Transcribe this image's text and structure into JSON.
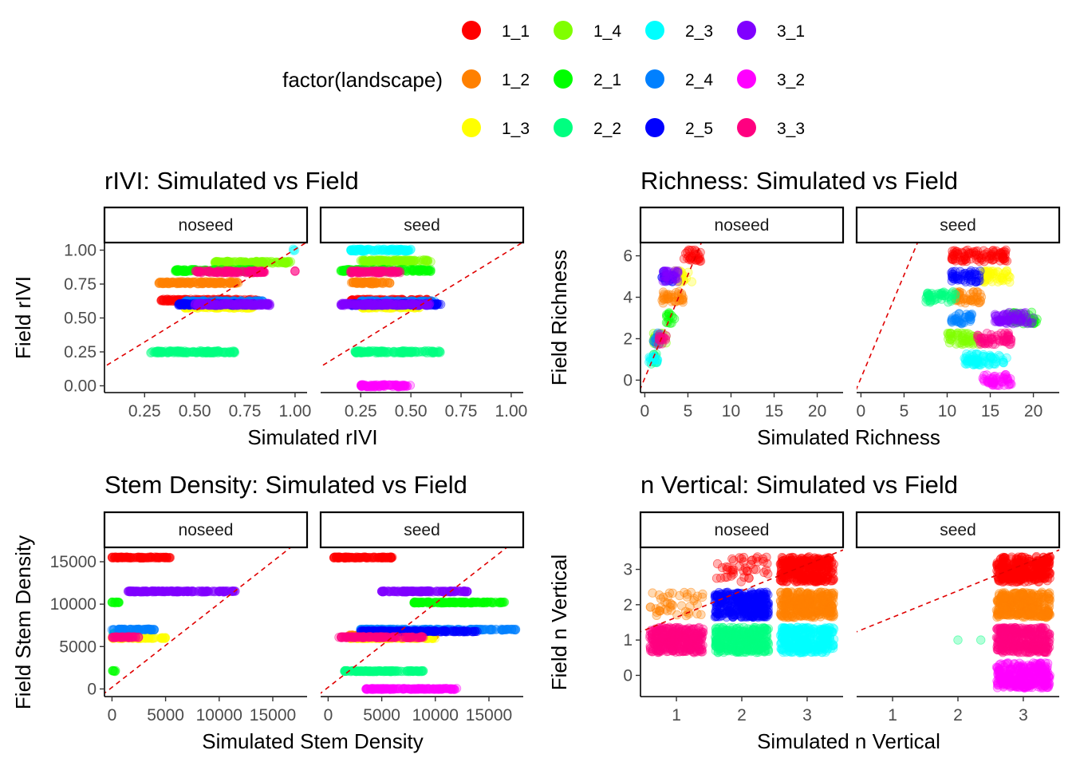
{
  "legend": {
    "title": "factor(landscape)",
    "items": [
      {
        "label": "1_1",
        "color": "#FF0000"
      },
      {
        "label": "1_2",
        "color": "#FF8000"
      },
      {
        "label": "1_3",
        "color": "#FFFF00"
      },
      {
        "label": "1_4",
        "color": "#80FF00"
      },
      {
        "label": "2_1",
        "color": "#00FF00"
      },
      {
        "label": "2_2",
        "color": "#00FF80"
      },
      {
        "label": "2_3",
        "color": "#00FFFF"
      },
      {
        "label": "2_4",
        "color": "#0080FF"
      },
      {
        "label": "2_5",
        "color": "#0000FF"
      },
      {
        "label": "3_1",
        "color": "#8000FF"
      },
      {
        "label": "3_2",
        "color": "#FF00FF"
      },
      {
        "label": "3_3",
        "color": "#FF0080"
      }
    ]
  },
  "chart_data": [
    {
      "type": "scatter",
      "title": "rIVI: Simulated vs Field",
      "xlabel": "Simulated rIVI",
      "ylabel": "Field rIVI",
      "facets": [
        "noseed",
        "seed"
      ],
      "xlim": [
        0.05,
        1.06
      ],
      "ylim": [
        -0.05,
        1.05
      ],
      "xticks": [
        0.25,
        0.5,
        0.75,
        1.0
      ],
      "xtick_labels": [
        "0.25",
        "0.50",
        "0.75",
        "1.00"
      ],
      "yticks": [
        0,
        0.25,
        0.5,
        0.75,
        1.0
      ],
      "ytick_labels": [
        "0.00",
        "0.25",
        "0.50",
        "0.75",
        "1.00"
      ],
      "reference_line": "y = x (red dashed)",
      "clusters": {
        "noseed": [
          {
            "g": "1_1",
            "y": 0.63,
            "x": [
              0.33,
              0.82
            ]
          },
          {
            "g": "1_2",
            "y": 0.76,
            "x": [
              0.32,
              0.72
            ]
          },
          {
            "g": "1_3",
            "y": 0.58,
            "x": [
              0.45,
              0.8
            ]
          },
          {
            "g": "1_4",
            "y": 0.91,
            "x": [
              0.6,
              0.98
            ]
          },
          {
            "g": "2_1",
            "y": 0.85,
            "x": [
              0.4,
              0.8
            ]
          },
          {
            "g": "2_2",
            "y": 0.25,
            "x": [
              0.28,
              0.7
            ]
          },
          {
            "g": "2_3",
            "y": 1.0,
            "x": [
              0.99,
              1.0
            ]
          },
          {
            "g": "2_4",
            "y": 0.62,
            "x": [
              0.45,
              0.85
            ]
          },
          {
            "g": "2_5",
            "y": 0.6,
            "x": [
              0.42,
              0.8
            ]
          },
          {
            "g": "3_1",
            "y": 0.6,
            "x": [
              0.5,
              0.88
            ]
          },
          {
            "g": "3_3",
            "y": 0.84,
            "x": [
              0.5,
              0.85
            ]
          },
          {
            "g": "3_3",
            "y": 0.84,
            "x": [
              1.0,
              1.0
            ]
          }
        ],
        "seed": [
          {
            "g": "1_1",
            "y": 0.63,
            "x": [
              0.2,
              0.6
            ]
          },
          {
            "g": "1_2",
            "y": 0.76,
            "x": [
              0.2,
              0.4
            ]
          },
          {
            "g": "1_3",
            "y": 0.58,
            "x": [
              0.25,
              0.55
            ]
          },
          {
            "g": "1_4",
            "y": 0.92,
            "x": [
              0.25,
              0.6
            ]
          },
          {
            "g": "2_1",
            "y": 0.85,
            "x": [
              0.15,
              0.6
            ]
          },
          {
            "g": "2_2",
            "y": 0.25,
            "x": [
              0.22,
              0.65
            ]
          },
          {
            "g": "2_3",
            "y": 1.0,
            "x": [
              0.2,
              0.5
            ]
          },
          {
            "g": "2_4",
            "y": 0.62,
            "x": [
              0.25,
              0.62
            ]
          },
          {
            "g": "2_5",
            "y": 0.6,
            "x": [
              0.2,
              0.65
            ]
          },
          {
            "g": "3_1",
            "y": 0.6,
            "x": [
              0.15,
              0.6
            ]
          },
          {
            "g": "3_2",
            "y": 0.0,
            "x": [
              0.25,
              0.5
            ]
          },
          {
            "g": "3_3",
            "y": 0.84,
            "x": [
              0.2,
              0.45
            ]
          }
        ]
      }
    },
    {
      "type": "scatter",
      "title": "Richness: Simulated vs Field",
      "xlabel": "Simulated Richness",
      "ylabel": "Field Richness",
      "facets": [
        "noseed",
        "seed"
      ],
      "xlim": [
        -0.5,
        23
      ],
      "ylim": [
        -0.6,
        6.6
      ],
      "xticks": [
        0,
        5,
        10,
        15,
        20
      ],
      "xtick_labels": [
        "0",
        "5",
        "10",
        "15",
        "20"
      ],
      "yticks": [
        0,
        2,
        4,
        6
      ],
      "ytick_labels": [
        "0",
        "2",
        "4",
        "6"
      ],
      "reference_line": "y = x (red dashed)",
      "clusters": {
        "noseed": [
          {
            "g": "1_1",
            "y": 6,
            "x": [
              4.5,
              6.5
            ]
          },
          {
            "g": "1_2",
            "y": 4,
            "x": [
              2,
              4.5
            ]
          },
          {
            "g": "1_3",
            "y": 5,
            "x": [
              3.5,
              5.5
            ]
          },
          {
            "g": "1_4",
            "y": 2,
            "x": [
              1,
              2.5
            ]
          },
          {
            "g": "2_1",
            "y": 3,
            "x": [
              2.5,
              3.5
            ]
          },
          {
            "g": "2_2",
            "y": 1,
            "x": [
              0.7,
              1.5
            ]
          },
          {
            "g": "2_3",
            "y": 1,
            "x": [
              0.5,
              1.5
            ]
          },
          {
            "g": "2_4",
            "y": 2,
            "x": [
              1,
              2
            ]
          },
          {
            "g": "2_5",
            "y": 5,
            "x": [
              2,
              3.5
            ]
          },
          {
            "g": "3_1",
            "y": 5,
            "x": [
              2,
              4
            ]
          },
          {
            "g": "3_3",
            "y": 2,
            "x": [
              1.5,
              2.5
            ]
          }
        ],
        "seed": [
          {
            "g": "1_1",
            "y": 6,
            "x": [
              10.5,
              17
            ]
          },
          {
            "g": "1_2",
            "y": 4,
            "x": [
              11,
              14
            ]
          },
          {
            "g": "1_3",
            "y": 5,
            "x": [
              14,
              17.5
            ]
          },
          {
            "g": "1_4",
            "y": 2,
            "x": [
              10,
              14
            ]
          },
          {
            "g": "2_1",
            "y": 3,
            "x": [
              17,
              20.5
            ]
          },
          {
            "g": "2_2",
            "y": 4,
            "x": [
              7.5,
              11
            ]
          },
          {
            "g": "2_3",
            "y": 1,
            "x": [
              12,
              17
            ]
          },
          {
            "g": "2_4",
            "y": 3,
            "x": [
              10.5,
              13
            ]
          },
          {
            "g": "2_5",
            "y": 5,
            "x": [
              10.5,
              14
            ]
          },
          {
            "g": "3_1",
            "y": 3,
            "x": [
              15.5,
              20
            ]
          },
          {
            "g": "3_2",
            "y": 0,
            "x": [
              14,
              17.5
            ]
          },
          {
            "g": "3_3",
            "y": 2,
            "x": [
              13.5,
              17.5
            ]
          }
        ]
      }
    },
    {
      "type": "scatter",
      "title": "Stem Density: Simulated vs Field",
      "xlabel": "Simulated Stem Density",
      "ylabel": "Field Stem Density",
      "facets": [
        "noseed",
        "seed"
      ],
      "xlim": [
        -700,
        18200
      ],
      "ylim": [
        -900,
        16600
      ],
      "xticks": [
        0,
        5000,
        10000,
        15000
      ],
      "xtick_labels": [
        "0",
        "5000",
        "10000",
        "15000"
      ],
      "yticks": [
        0,
        5000,
        10000,
        15000
      ],
      "ytick_labels": [
        "0",
        "5000",
        "10000",
        "15000"
      ],
      "reference_line": "y = x (red dashed)",
      "clusters": {
        "noseed": [
          {
            "g": "1_1",
            "y": 15500,
            "x": [
              0,
              5500
            ]
          },
          {
            "g": "1_2",
            "y": 6300,
            "x": [
              0,
              2000
            ]
          },
          {
            "g": "1_3",
            "y": 6000,
            "x": [
              0,
              5000
            ]
          },
          {
            "g": "2_1",
            "y": 10200,
            "x": [
              0,
              800
            ]
          },
          {
            "g": "2_1",
            "y": 2100,
            "x": [
              0,
              400
            ]
          },
          {
            "g": "2_2",
            "y": 6500,
            "x": [
              0,
              900
            ]
          },
          {
            "g": "2_4",
            "y": 7000,
            "x": [
              0,
              4000
            ]
          },
          {
            "g": "3_1",
            "y": 11500,
            "x": [
              1500,
              11500
            ]
          },
          {
            "g": "3_3",
            "y": 6100,
            "x": [
              0,
              2500
            ]
          }
        ],
        "seed": [
          {
            "g": "1_1",
            "y": 15500,
            "x": [
              500,
              6000
            ]
          },
          {
            "g": "1_2",
            "y": 6300,
            "x": [
              2000,
              10000
            ]
          },
          {
            "g": "1_3",
            "y": 6000,
            "x": [
              2000,
              10000
            ]
          },
          {
            "g": "2_1",
            "y": 10200,
            "x": [
              8000,
              16500
            ]
          },
          {
            "g": "2_2",
            "y": 2100,
            "x": [
              1500,
              9000
            ]
          },
          {
            "g": "2_4",
            "y": 7000,
            "x": [
              3000,
              17500
            ]
          },
          {
            "g": "2_5",
            "y": 6800,
            "x": [
              3000,
              14000
            ]
          },
          {
            "g": "3_1",
            "y": 11500,
            "x": [
              5000,
              13000
            ]
          },
          {
            "g": "3_2",
            "y": 0,
            "x": [
              3500,
              12000
            ]
          },
          {
            "g": "3_3",
            "y": 6100,
            "x": [
              1000,
              9000
            ]
          }
        ]
      }
    },
    {
      "type": "scatter",
      "title": "n Vertical: Simulated vs Field",
      "xlabel": "Simulated n Vertical",
      "ylabel": "Field n Vertical",
      "facets": [
        "noseed",
        "seed"
      ],
      "xlim": [
        0.45,
        3.55
      ],
      "ylim": [
        -0.6,
        3.6
      ],
      "xticks": [
        1,
        2,
        3
      ],
      "xtick_labels": [
        "1",
        "2",
        "3"
      ],
      "yticks": [
        0,
        1,
        2,
        3
      ],
      "ytick_labels": [
        "0",
        "1",
        "2",
        "3"
      ],
      "reference_line": "y = x (red dashed)",
      "clusters": {
        "noseed": [
          {
            "g": "1_1",
            "x": 3,
            "y": 3
          },
          {
            "g": "1_1",
            "x": 2,
            "y": 3,
            "sparse": true
          },
          {
            "g": "1_2",
            "x": 3,
            "y": 2
          },
          {
            "g": "1_2",
            "x": 1,
            "y": 2,
            "sparse": true
          },
          {
            "g": "2_5",
            "x": 2,
            "y": 2
          },
          {
            "g": "2_2",
            "x": 2,
            "y": 1
          },
          {
            "g": "2_3",
            "x": 3,
            "y": 1
          },
          {
            "g": "3_3",
            "x": 1,
            "y": 1
          }
        ],
        "seed": [
          {
            "g": "1_1",
            "x": 3,
            "y": 3
          },
          {
            "g": "1_2",
            "x": 3,
            "y": 2
          },
          {
            "g": "2_2",
            "x": 2,
            "y": 1,
            "sparse": true
          },
          {
            "g": "3_3",
            "x": 3,
            "y": 1
          },
          {
            "g": "3_2",
            "x": 3,
            "y": 0
          }
        ]
      }
    }
  ]
}
